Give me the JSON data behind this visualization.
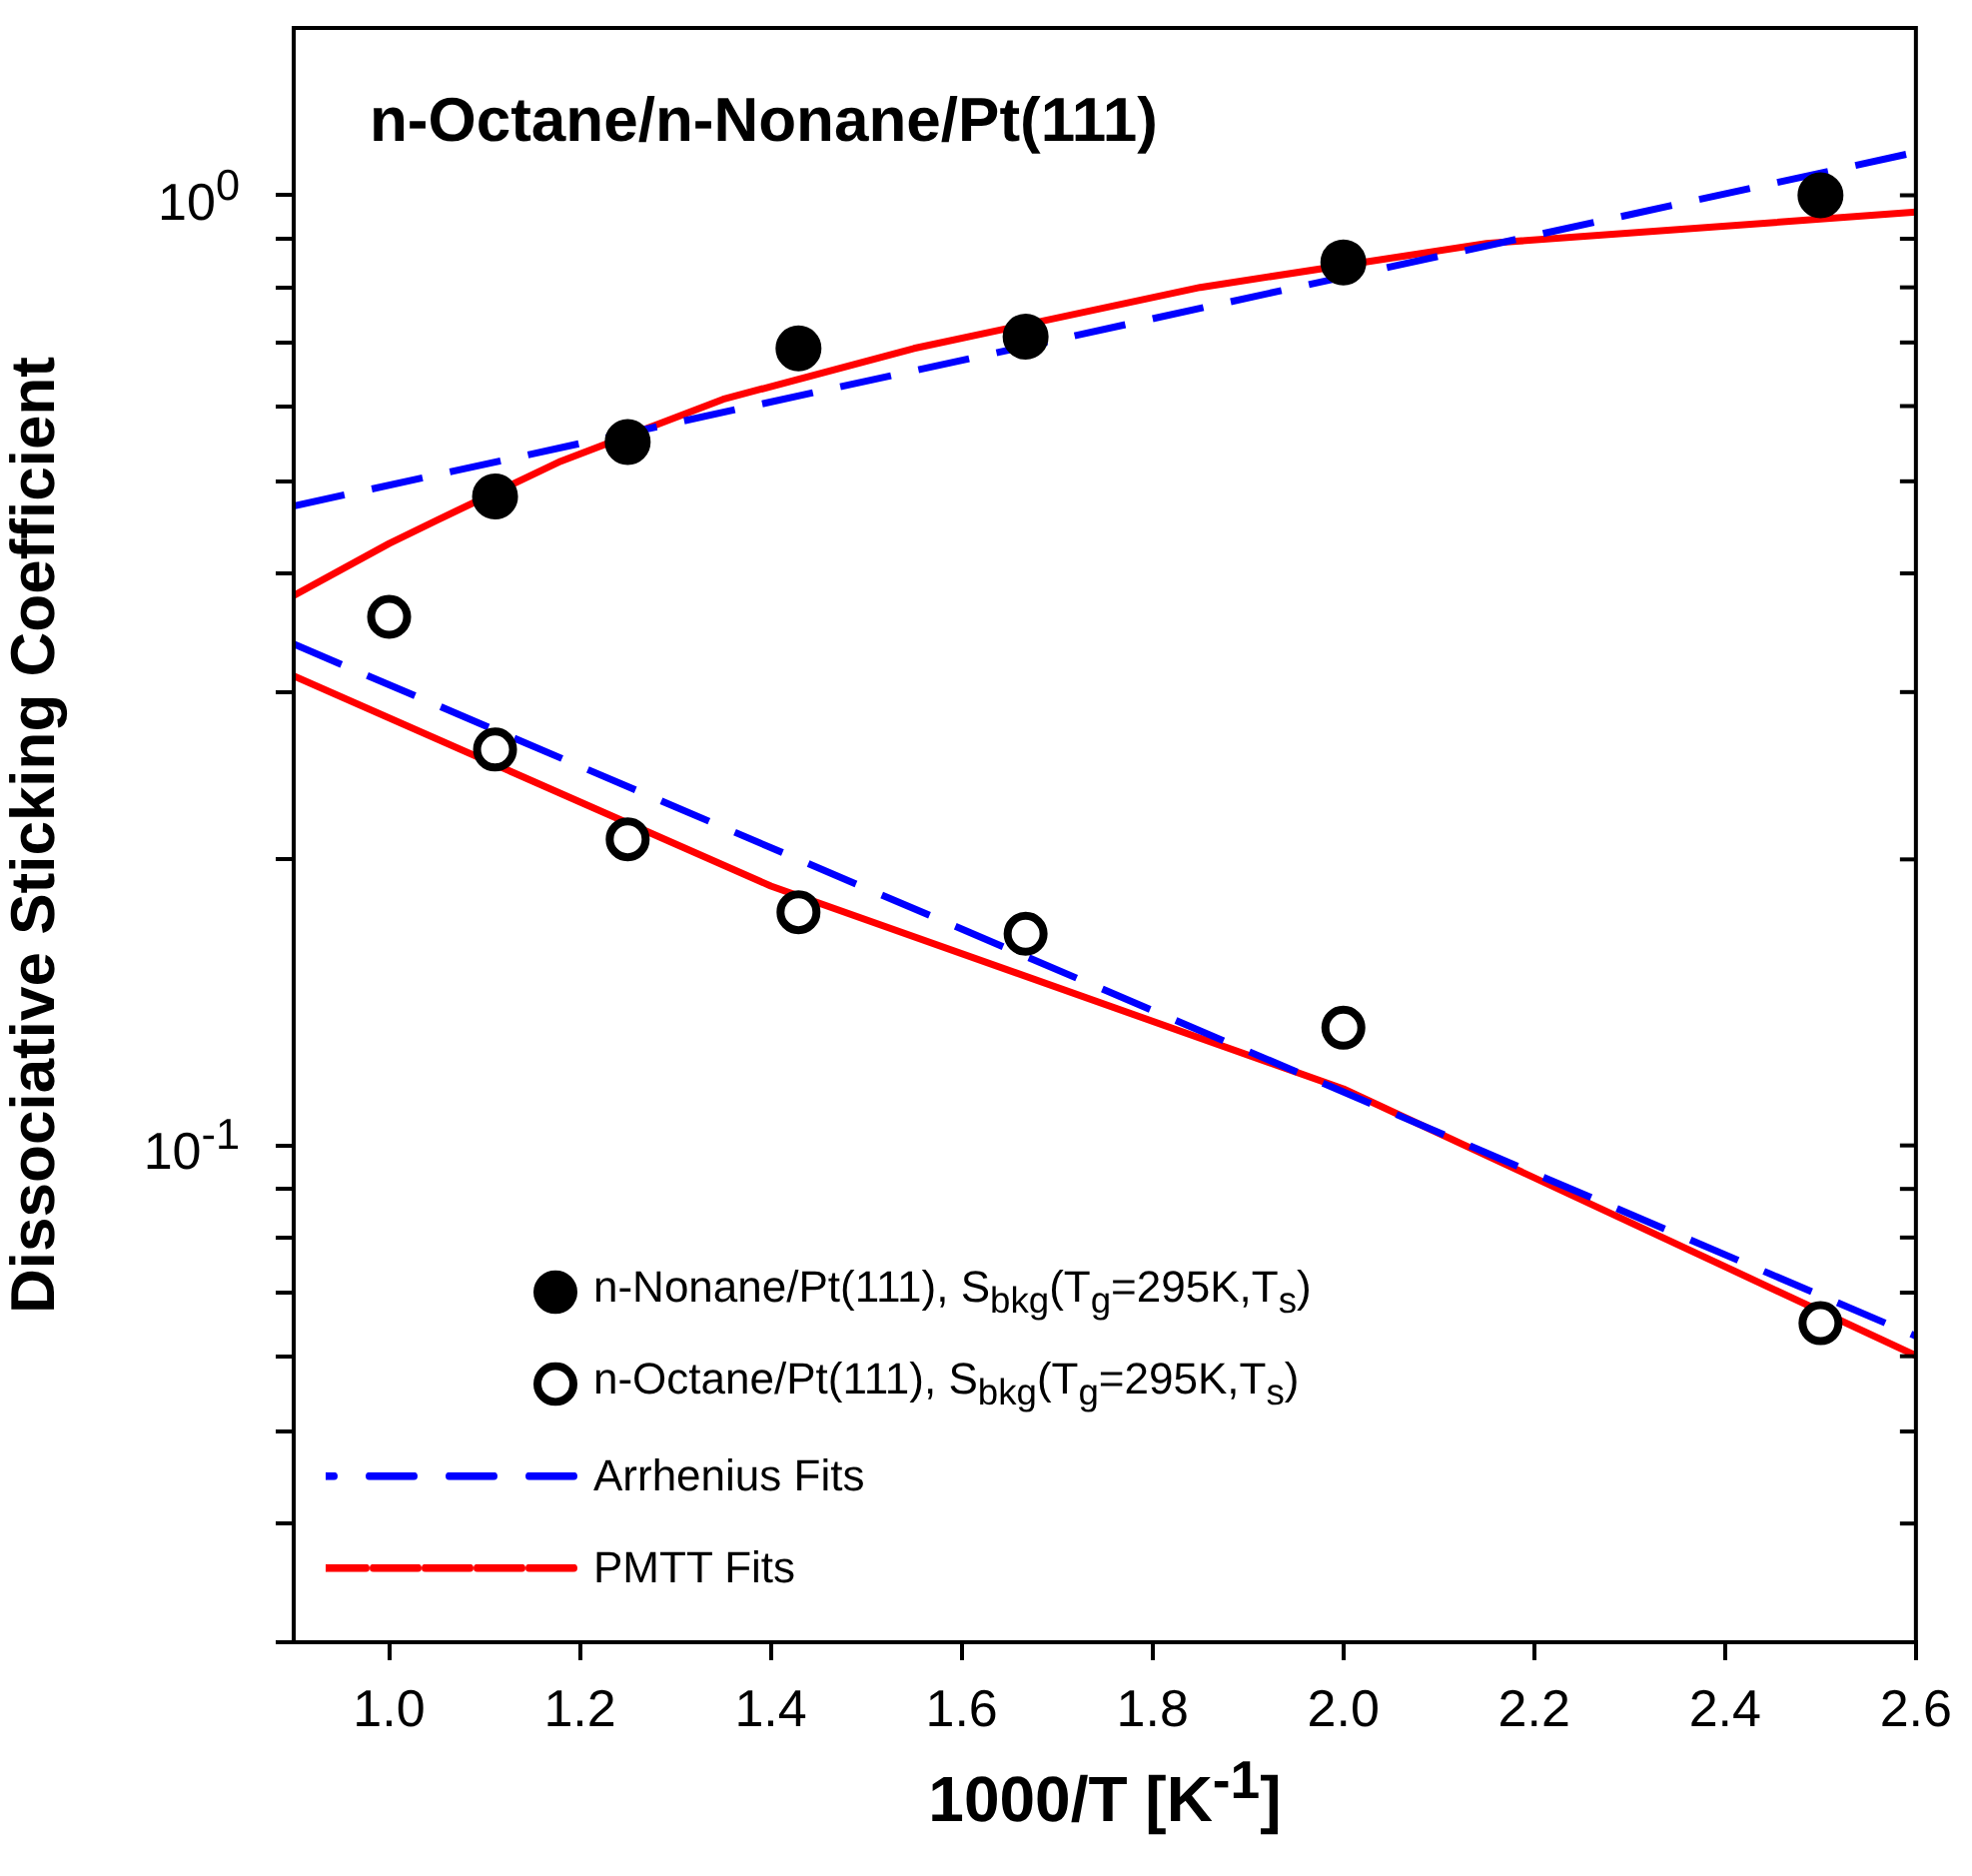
{
  "chart_data": {
    "type": "scatter",
    "title": "n-Octane/n-Nonane/Pt(111)",
    "xlabel": "1000/T [K$^{-1}$]",
    "ylabel": "Dissociative Sticking Coefficient",
    "log": "y",
    "grid": false,
    "legend": "bottom left",
    "xlim": [
      0.9,
      2.6
    ],
    "xticks": [
      {
        "value": 1,
        "label": "1.0"
      },
      1.2,
      1.4,
      1.6,
      1.8,
      {
        "value": 2,
        "label": "2.0"
      },
      2.2,
      2.4,
      2.6
    ],
    "ylim": [
      0.03,
      1.5
    ],
    "yticks": [
      {
        "value": 0.03,
        "label": null
      },
      {
        "value": 0.04,
        "label": null
      },
      {
        "value": 0.05,
        "label": null
      },
      {
        "value": 0.06,
        "label": null
      },
      {
        "value": 0.07,
        "label": null
      },
      {
        "value": 0.08,
        "label": null
      },
      {
        "value": 0.09,
        "label": null
      },
      {
        "value": 0.1,
        "label": "10$^{-1}$"
      },
      {
        "value": 0.2,
        "label": null
      },
      {
        "value": 0.3,
        "label": null
      },
      {
        "value": 0.4,
        "label": null
      },
      {
        "value": 0.5,
        "label": null
      },
      {
        "value": 0.6,
        "label": null
      },
      {
        "value": 0.7,
        "label": null
      },
      {
        "value": 0.8,
        "label": null
      },
      {
        "value": 0.9,
        "label": null
      },
      {
        "value": 1,
        "label": "10$^{0}$"
      }
    ],
    "series": [
      {
        "name": "n-Nonane/Pt(111), S$_{bkg}$(T$_{g}$=295K,T$_{s}$)",
        "type": "scatter",
        "marker": "circle",
        "color": "#000000",
        "x": [
          1.111,
          1.25,
          1.429,
          1.667,
          2.0,
          2.5
        ],
        "values": [
          0.482,
          0.55,
          0.69,
          0.71,
          0.85,
          1.0
        ]
      },
      {
        "name": "n-Octane/Pt(111), S$_{bkg}$(T$_{g}$=295K,T$_{s}$)",
        "type": "scatter",
        "marker": "circle",
        "color": "#000000",
        "x": [
          1.0,
          1.111,
          1.25,
          1.429,
          1.667,
          2.0,
          2.5
        ],
        "values": [
          0.36,
          0.261,
          0.21,
          0.176,
          0.167,
          0.133,
          0.065
        ]
      },
      {
        "name": "Arrhenius Fits",
        "type": "line",
        "marker": "none",
        "line_style": "dashed",
        "color": "#0000ff",
        "x": [
          0.9,
          2.6
        ],
        "values": [
          0.471,
          1.11
        ]
      },
      {
        "type": "line",
        "marker": "none",
        "line_style": "dashed",
        "color": "#0000ff",
        "x": [
          0.9,
          2.6
        ],
        "values": [
          0.337,
          0.063
        ]
      },
      {
        "name": "PMTT Fits",
        "type": "line",
        "marker": "none",
        "line_style": "solid",
        "color": "#ff0000",
        "x": [
          0.9,
          1.0,
          1.05,
          1.18,
          1.35,
          1.55,
          1.85,
          2.15,
          2.6
        ],
        "values": [
          0.379,
          0.43,
          0.455,
          0.525,
          0.61,
          0.69,
          0.8,
          0.89,
          0.96
        ]
      },
      {
        "type": "line",
        "marker": "none",
        "line_style": "solid",
        "color": "#ff0000",
        "x": [
          0.9,
          1.4,
          2.0,
          2.6
        ],
        "values": [
          0.312,
          0.1875,
          0.1147,
          0.0601
        ]
      }
    ]
  }
}
